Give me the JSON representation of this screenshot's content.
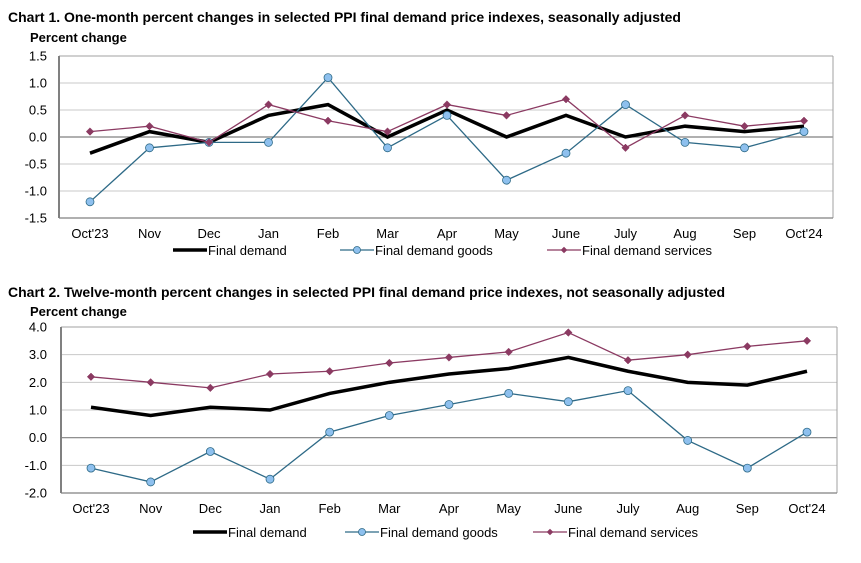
{
  "colors": {
    "final_demand": "#000000",
    "goods_line": "#2e6a87",
    "goods_marker": "#8ec0ee",
    "services": "#8b3a62",
    "grid": "#c8c8c8",
    "axis": "#808080",
    "zero": "#808080"
  },
  "chart_data": [
    {
      "type": "line",
      "title": "Chart 1. One-month percent changes in selected PPI final demand price indexes, seasonally adjusted",
      "ylabel": "Percent change",
      "xlabel": "",
      "categories": [
        "Oct'23",
        "Nov",
        "Dec",
        "Jan",
        "Feb",
        "Mar",
        "Apr",
        "May",
        "June",
        "July",
        "Aug",
        "Sep",
        "Oct'24"
      ],
      "ylim": [
        -1.5,
        1.5
      ],
      "yticks": [
        1.5,
        1.0,
        0.5,
        0.0,
        -0.5,
        -1.0,
        -1.5
      ],
      "ytick_labels": [
        "1.5",
        "1.0",
        "0.5",
        "0.0",
        "-0.5",
        "-1.0",
        "-1.5"
      ],
      "grid": true,
      "legend_position": "bottom",
      "series": [
        {
          "name": "Final demand",
          "key": "final_demand",
          "values": [
            -0.3,
            0.1,
            -0.1,
            0.4,
            0.6,
            0.0,
            0.5,
            0.0,
            0.4,
            0.0,
            0.2,
            0.1,
            0.2
          ]
        },
        {
          "name": "Final demand goods",
          "key": "goods",
          "values": [
            -1.2,
            -0.2,
            -0.1,
            -0.1,
            1.1,
            -0.2,
            0.4,
            -0.8,
            -0.3,
            0.6,
            -0.1,
            -0.2,
            0.1
          ]
        },
        {
          "name": "Final demand services",
          "key": "services",
          "values": [
            0.1,
            0.2,
            -0.1,
            0.6,
            0.3,
            0.1,
            0.6,
            0.4,
            0.7,
            -0.2,
            0.4,
            0.2,
            0.3
          ]
        }
      ]
    },
    {
      "type": "line",
      "title": "Chart 2. Twelve-month percent changes in selected PPI final demand price indexes, not seasonally adjusted",
      "ylabel": "Percent change",
      "xlabel": "",
      "categories": [
        "Oct'23",
        "Nov",
        "Dec",
        "Jan",
        "Feb",
        "Mar",
        "Apr",
        "May",
        "June",
        "July",
        "Aug",
        "Sep",
        "Oct'24"
      ],
      "ylim": [
        -2.0,
        4.0
      ],
      "yticks": [
        4.0,
        3.0,
        2.0,
        1.0,
        0.0,
        -1.0,
        -2.0
      ],
      "ytick_labels": [
        "4.0",
        "3.0",
        "2.0",
        "1.0",
        "0.0",
        "-1.0",
        "-2.0"
      ],
      "grid": true,
      "legend_position": "bottom",
      "series": [
        {
          "name": "Final demand",
          "key": "final_demand",
          "values": [
            1.1,
            0.8,
            1.1,
            1.0,
            1.6,
            2.0,
            2.3,
            2.5,
            2.9,
            2.4,
            2.0,
            1.9,
            2.4
          ]
        },
        {
          "name": "Final demand goods",
          "key": "goods",
          "values": [
            -1.1,
            -1.6,
            -0.5,
            -1.5,
            0.2,
            0.8,
            1.2,
            1.6,
            1.3,
            1.7,
            -0.1,
            -1.1,
            0.2
          ]
        },
        {
          "name": "Final demand services",
          "key": "services",
          "values": [
            2.2,
            2.0,
            1.8,
            2.3,
            2.4,
            2.7,
            2.9,
            3.1,
            3.8,
            2.8,
            3.0,
            3.3,
            3.5
          ]
        }
      ]
    }
  ]
}
